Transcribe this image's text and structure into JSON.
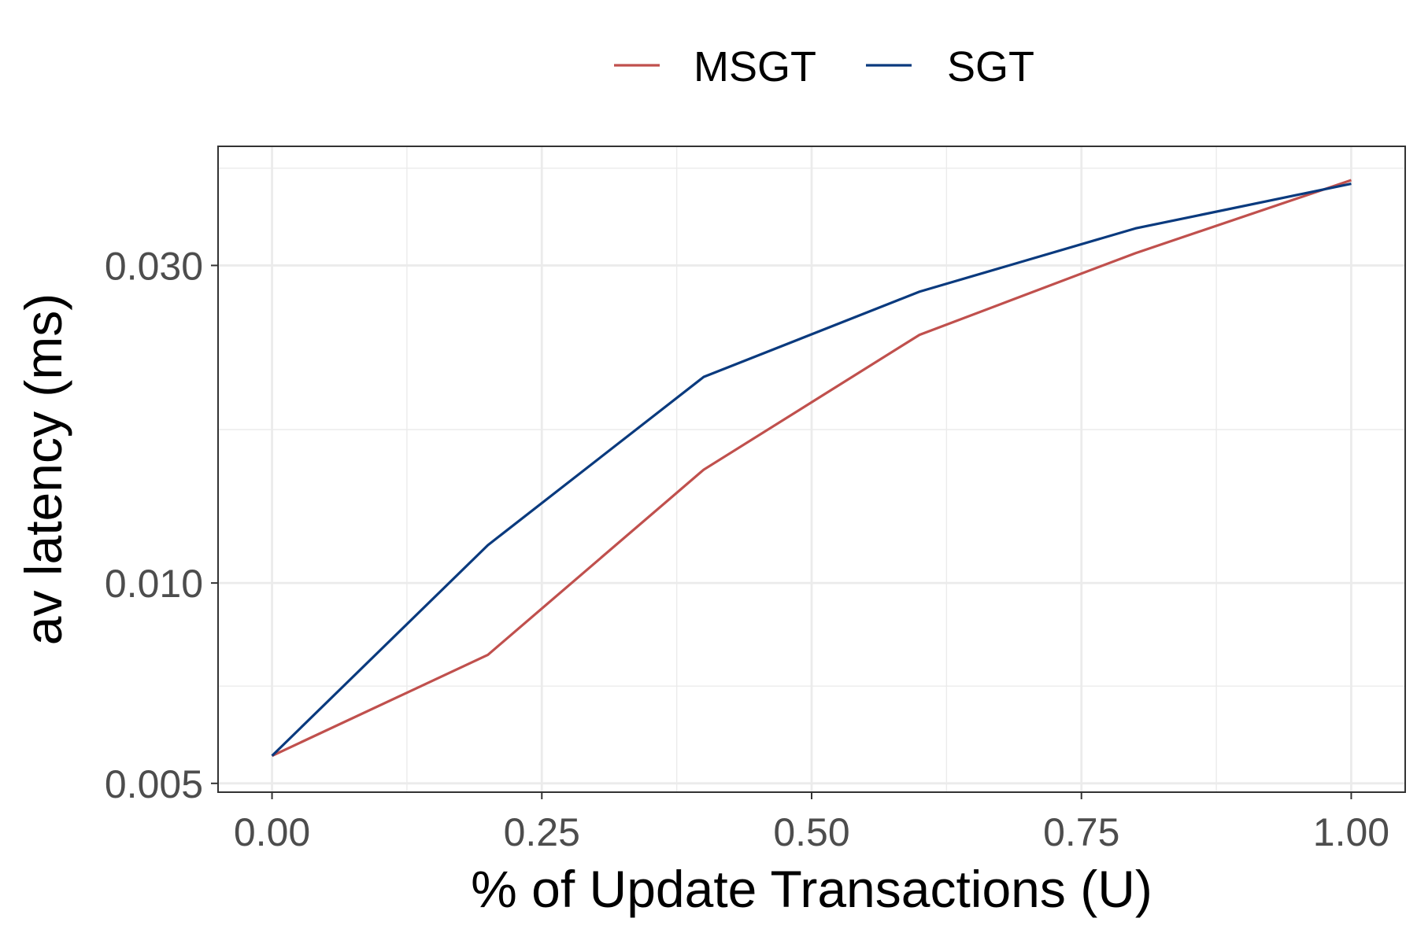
{
  "chart_data": {
    "type": "line",
    "title": "",
    "xlabel": "% of Update Transactions (U)",
    "ylabel": "av latency (ms)",
    "y_scale": "log",
    "xlim": [
      -0.05,
      1.05
    ],
    "ylim": [
      0.00485,
      0.0453
    ],
    "x_ticks": [
      0.0,
      0.25,
      0.5,
      0.75,
      1.0
    ],
    "x_tick_labels": [
      "0.00",
      "0.25",
      "0.50",
      "0.75",
      "1.00"
    ],
    "y_ticks": [
      0.005,
      0.01,
      0.03
    ],
    "y_tick_labels": [
      "0.005",
      "0.010",
      "0.030"
    ],
    "y_minor_gridlines": [
      0.007,
      0.017
    ],
    "grid": true,
    "legend_position": "top",
    "x": [
      0.0,
      0.2,
      0.4,
      0.6,
      0.8,
      1.0
    ],
    "series": [
      {
        "name": "MSGT",
        "color": "#c0504d",
        "values": [
          0.0055,
          0.0078,
          0.0148,
          0.0236,
          0.0313,
          0.0403
        ]
      },
      {
        "name": "SGT",
        "color": "#0a3a7e",
        "values": [
          0.0055,
          0.0114,
          0.0204,
          0.0274,
          0.0341,
          0.0398
        ]
      }
    ]
  }
}
